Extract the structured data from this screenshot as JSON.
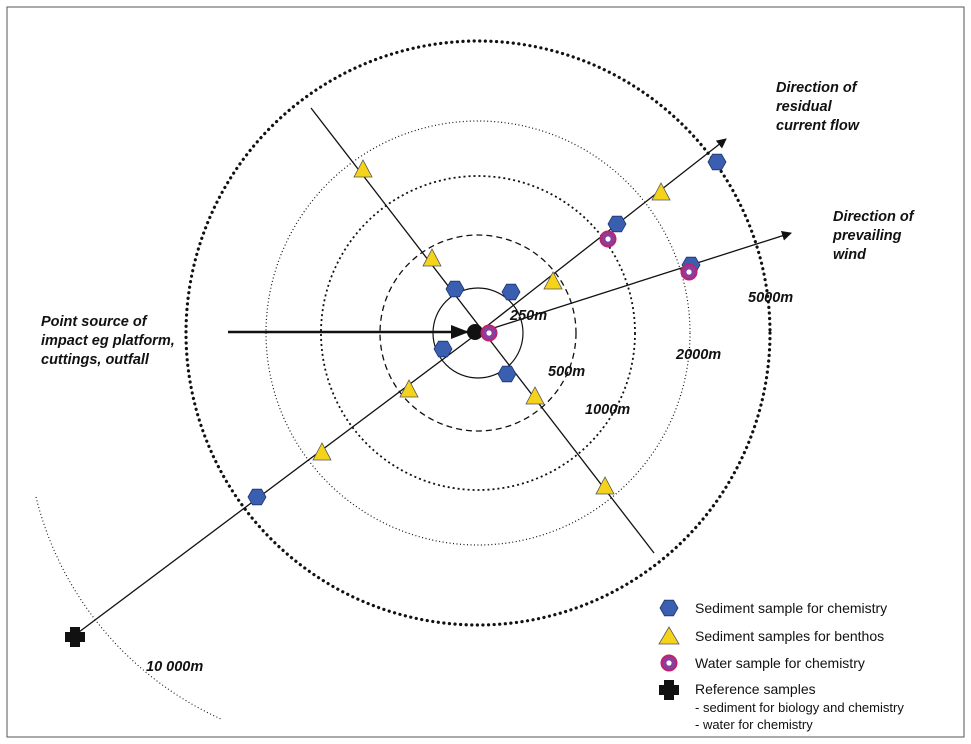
{
  "colors": {
    "sediment_chem": "#3b5fb0",
    "benthos": "#f5d31b",
    "water_ring": "#c0226a",
    "reference": "#111111"
  },
  "labels": {
    "current_line1": "Direction of",
    "current_line2": "residual",
    "current_line3": "current flow",
    "wind_line1": "Direction of",
    "wind_line2": "prevailing",
    "wind_line3": "wind",
    "source_line1": "Point source of",
    "source_line2": "impact eg platform,",
    "source_line3": "cuttings, outfall",
    "r250": "250m",
    "r500": "500m",
    "r1000": "1000m",
    "r2000": "2000m",
    "r5000": "5000m",
    "r10000": "10 000m"
  },
  "legend": {
    "sediment_chem": "Sediment sample for chemistry",
    "benthos": "Sediment samples for benthos",
    "water": "Water sample for chemistry",
    "reference": "Reference samples",
    "reference_sub1": "- sediment for biology and chemistry",
    "reference_sub2": "- water for chemistry"
  }
}
